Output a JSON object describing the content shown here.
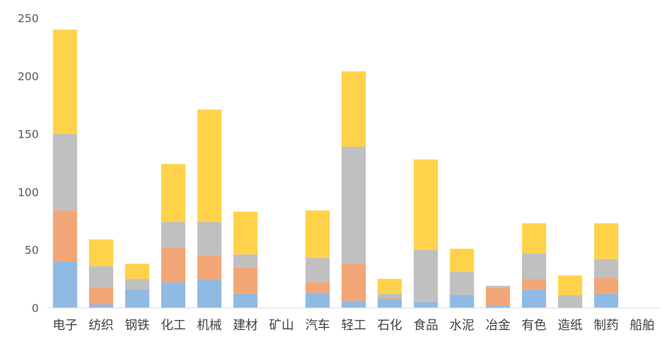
{
  "chart_data": {
    "type": "bar",
    "stacked": true,
    "categories": [
      "电子",
      "纺织",
      "钢铁",
      "化工",
      "机械",
      "建材",
      "矿山",
      "汽车",
      "轻工",
      "石化",
      "食品",
      "水泥",
      "冶金",
      "有色",
      "造纸",
      "制药",
      "船舶"
    ],
    "series": [
      {
        "color": "#8fbae3",
        "values": [
          40,
          3,
          16,
          22,
          24,
          12,
          0,
          13,
          6,
          8,
          5,
          11,
          2,
          16,
          1,
          12,
          0
        ]
      },
      {
        "color": "#f2a675",
        "values": [
          44,
          15,
          0,
          30,
          21,
          23,
          0,
          9,
          32,
          1,
          0,
          0,
          15,
          9,
          0,
          14,
          0
        ]
      },
      {
        "color": "#c0c0c0",
        "values": [
          66,
          18,
          9,
          22,
          29,
          11,
          0,
          21,
          101,
          3,
          45,
          20,
          2,
          22,
          10,
          16,
          0
        ]
      },
      {
        "color": "#ffd24a",
        "values": [
          90,
          23,
          13,
          50,
          97,
          37,
          0,
          41,
          65,
          13,
          78,
          20,
          0,
          26,
          17,
          31,
          0
        ]
      }
    ],
    "yticks": [
      0,
      50,
      100,
      150,
      200,
      250
    ],
    "ylim": [
      0,
      250
    ],
    "grid": false,
    "legend": "none",
    "title": "",
    "xlabel": "",
    "ylabel": ""
  }
}
